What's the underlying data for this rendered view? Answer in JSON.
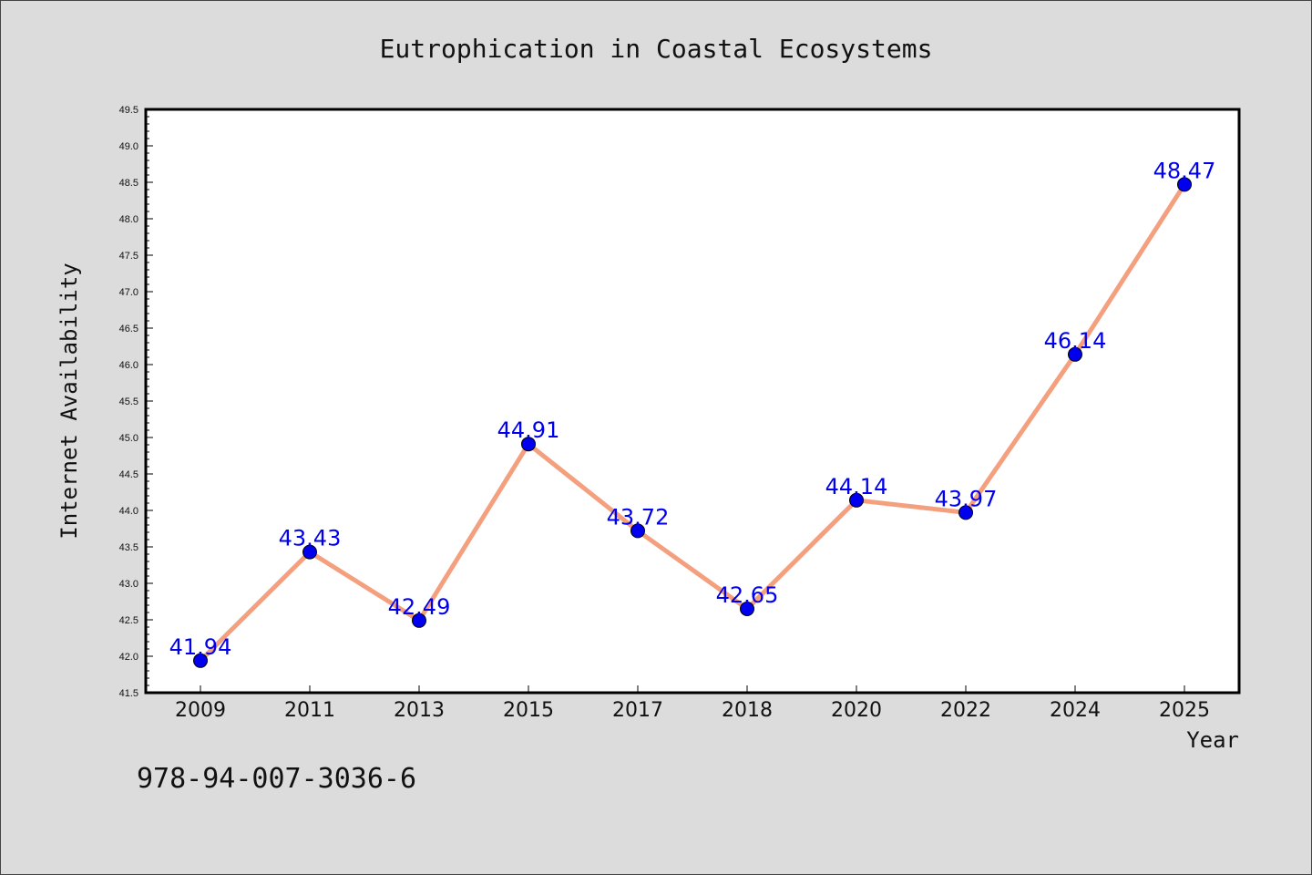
{
  "chart_data": {
    "type": "line",
    "title": "Eutrophication in Coastal Ecosystems",
    "xlabel": "Year",
    "ylabel": "Internet Availability",
    "categories": [
      "2009",
      "2011",
      "2013",
      "2015",
      "2017",
      "2018",
      "2020",
      "2022",
      "2024",
      "2025"
    ],
    "values": [
      41.94,
      43.43,
      42.49,
      44.91,
      43.72,
      42.65,
      44.14,
      43.97,
      46.14,
      48.47
    ],
    "data_labels": [
      "41.94",
      "43.43",
      "42.49",
      "44.91",
      "43.72",
      "42.65",
      "44.14",
      "43.97",
      "46.14",
      "48.47"
    ],
    "yticks": [
      "41.5",
      "42.0",
      "42.5",
      "43.0",
      "43.5",
      "44.0",
      "44.5",
      "45.0",
      "45.5",
      "46.0",
      "46.5",
      "47.0",
      "47.5",
      "48.0",
      "48.5",
      "49.0",
      "49.5"
    ],
    "ylim": [
      41.5,
      49.5
    ],
    "grid": false,
    "line_color": "#f4a07f",
    "marker_color": "#0000ee",
    "label_color": "#0000ee",
    "background_color": "#dcdcdc",
    "plot_background_color": "#ffffff"
  },
  "footer": {
    "isbn": "978-94-007-3036-6"
  }
}
